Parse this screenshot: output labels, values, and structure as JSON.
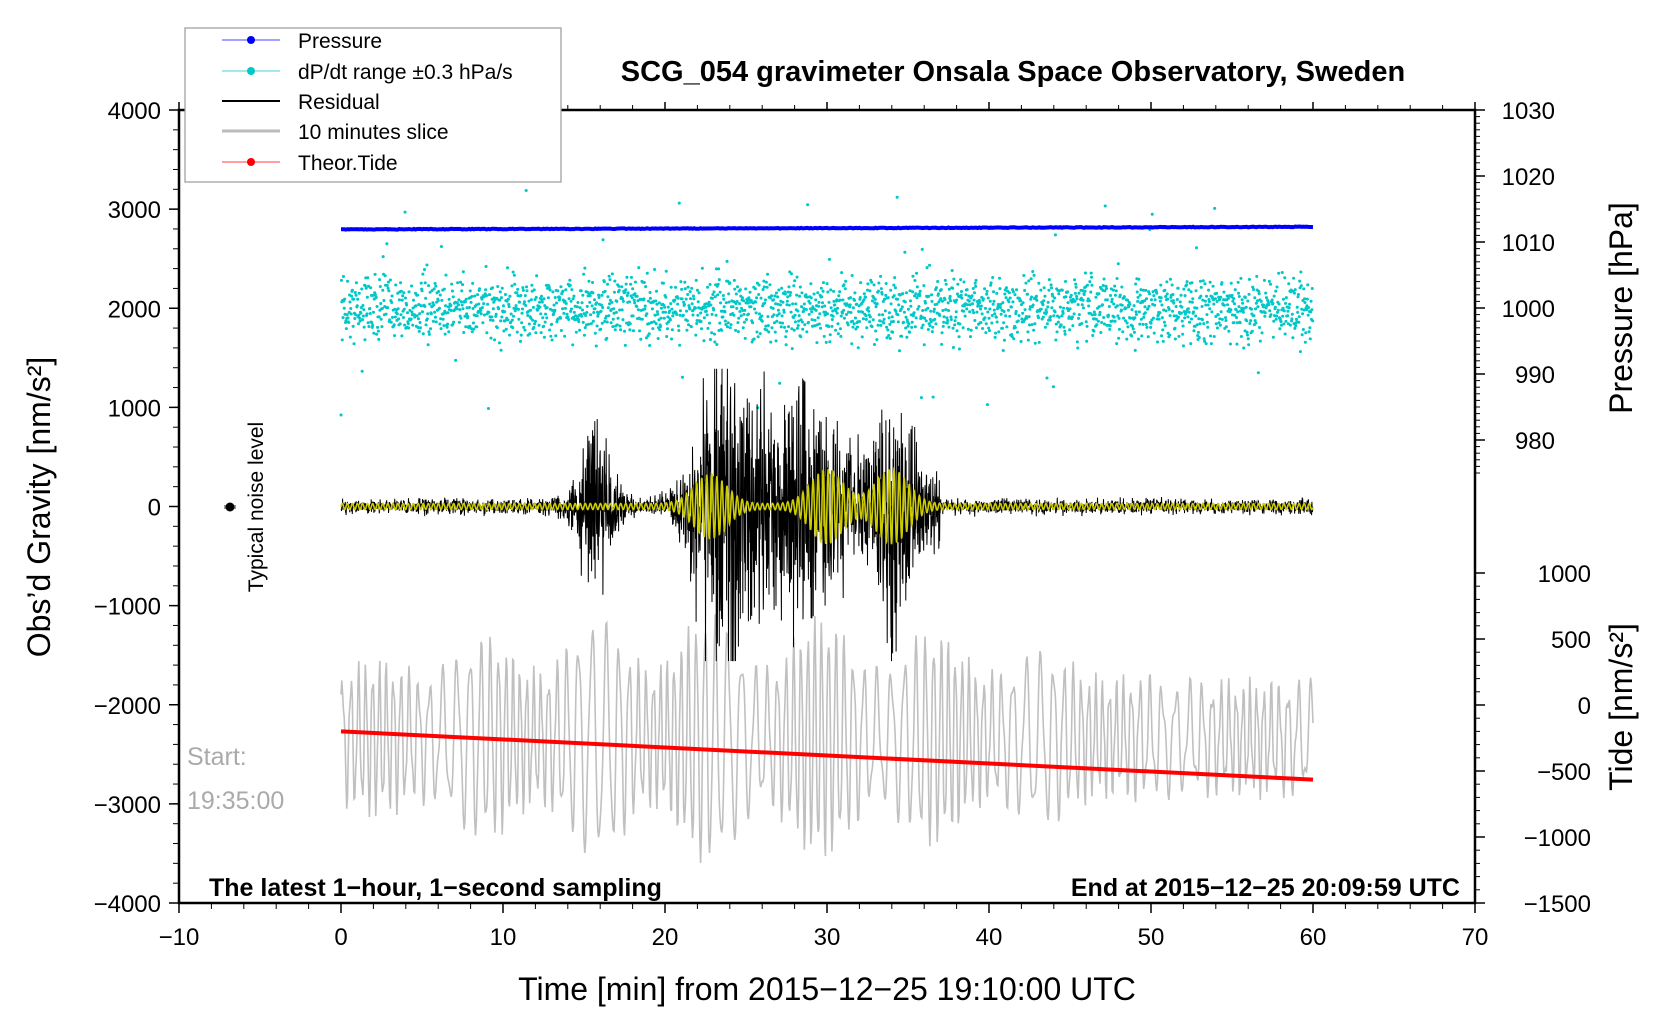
{
  "chart_data": {
    "type": "line",
    "title": "SCG_054 gravimeter Onsala Space Observatory, Sweden",
    "xlabel": "Time [min] from 2015−12−25 19:10:00 UTC",
    "ylabel_left": "Obs’d Gravity [nm/s²]",
    "ylabel_right_top": "Pressure [hPa]",
    "ylabel_right_bottom": "Tide [nm/s²]",
    "xlim": [
      -10,
      70
    ],
    "ylim_left": [
      -4000,
      4000
    ],
    "ylim_pressure": [
      980,
      1030
    ],
    "ylim_tide": [
      -1500,
      1000
    ],
    "x_ticks": [
      -10,
      0,
      10,
      20,
      30,
      40,
      50,
      60,
      70
    ],
    "x_tick_labels": [
      "−10",
      "0",
      "10",
      "20",
      "30",
      "40",
      "50",
      "60",
      "70"
    ],
    "y_left_ticks": [
      4000,
      3000,
      2000,
      1000,
      0,
      -1000,
      -2000,
      -3000,
      -4000
    ],
    "y_left_tick_labels": [
      "4000",
      "3000",
      "2000",
      "1000",
      "0",
      "−1000",
      "−2000",
      "−3000",
      "−4000"
    ],
    "y_pressure_ticks": [
      1030,
      1020,
      1010,
      1000,
      990,
      980
    ],
    "y_pressure_tick_labels": [
      "1030",
      "1020",
      "1010",
      "1000",
      "990",
      "980"
    ],
    "y_tide_ticks": [
      1000,
      500,
      0,
      -500,
      -1000,
      -1500
    ],
    "y_tide_tick_labels": [
      "1000",
      "500",
      "0",
      "−500",
      "−1000",
      "−1500"
    ],
    "legend": {
      "placement": "top-left",
      "entries": [
        {
          "label": "Pressure",
          "color": "#0000ff",
          "marker": "dot"
        },
        {
          "label": "dP/dt range ±0.3 hPa/s",
          "color": "#00c8c8",
          "marker": "dot"
        },
        {
          "label": "Residual",
          "color": "#000000",
          "marker": "line"
        },
        {
          "label": "10 minutes slice",
          "color": "#bbbbbb",
          "marker": "line"
        },
        {
          "label": "Theor.Tide",
          "color": "#ff0000",
          "marker": "dot"
        }
      ]
    },
    "series": [
      {
        "name": "Pressure",
        "axis": "pressure",
        "x": [
          0,
          30,
          60
        ],
        "values": [
          1011.9,
          1012.1,
          1012.3
        ]
      },
      {
        "name": "dP/dt range ±0.3 hPa/s",
        "axis": "left",
        "center": 2000,
        "typical_spread": 350
      },
      {
        "name": "Residual",
        "axis": "left",
        "baseline": 0,
        "noise_amplitude": 100,
        "bursts": [
          {
            "t": 15.7,
            "max": 950,
            "min": -950
          },
          {
            "t": 23.6,
            "max": 1200,
            "min": -1550
          },
          {
            "t": 28.5,
            "max": 1050,
            "min": -1150
          },
          {
            "t": 34.0,
            "max": 1380,
            "min": -1450
          }
        ]
      },
      {
        "name": "Filtered residual",
        "axis": "left",
        "color": "#cccc00",
        "bursts": [
          {
            "t": 22.8,
            "amp": 300
          },
          {
            "t": 30.0,
            "amp": 350
          },
          {
            "t": 34.0,
            "amp": 350
          }
        ]
      },
      {
        "name": "10 minutes slice",
        "axis": "tide",
        "x_range": [
          0,
          60
        ],
        "min": -1250,
        "max": 700
      },
      {
        "name": "Theor.Tide",
        "axis": "tide",
        "x": [
          0,
          60
        ],
        "values": [
          -200,
          -565
        ]
      }
    ],
    "annotations": {
      "noise": "Typical noise level",
      "start_label": "Start:",
      "start_time": "19:35:00",
      "left_note": "The latest 1−hour, 1−second sampling",
      "right_note": "End at 2015−12−25 20:09:59 UTC"
    }
  }
}
